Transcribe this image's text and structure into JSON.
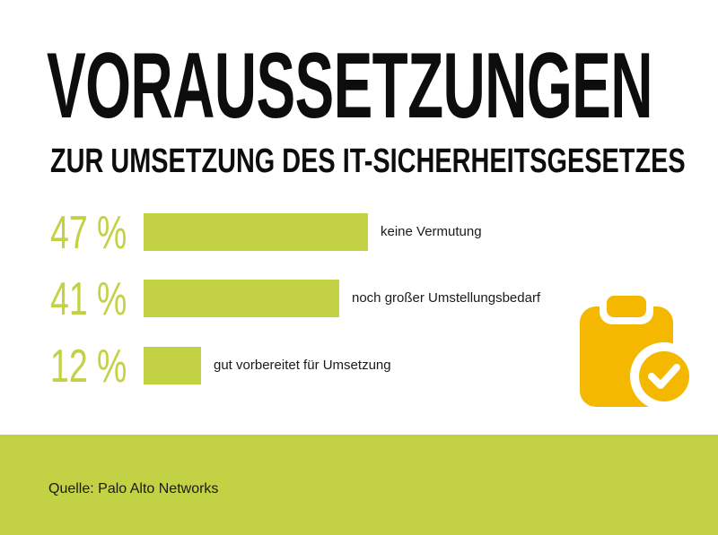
{
  "header": {
    "title": "VORAUSSETZUNGEN",
    "subtitle": "ZUR UMSETZUNG DES IT-SICHERHEITSGESETZES"
  },
  "chart_data": {
    "type": "bar",
    "orientation": "horizontal",
    "categories": [
      "keine Vermutung",
      "noch großer Umstellungsbedarf",
      "gut vorbereitet für Umsetzung"
    ],
    "values": [
      47,
      41,
      12
    ],
    "value_labels": [
      "47 %",
      "41 %",
      "12 %"
    ],
    "unit": "%",
    "bar_color": "#c3d145"
  },
  "icon": {
    "name": "clipboard-check-icon",
    "color": "#f5b800"
  },
  "footer": {
    "source": "Quelle: Palo Alto Networks",
    "color": "#c3d145"
  }
}
